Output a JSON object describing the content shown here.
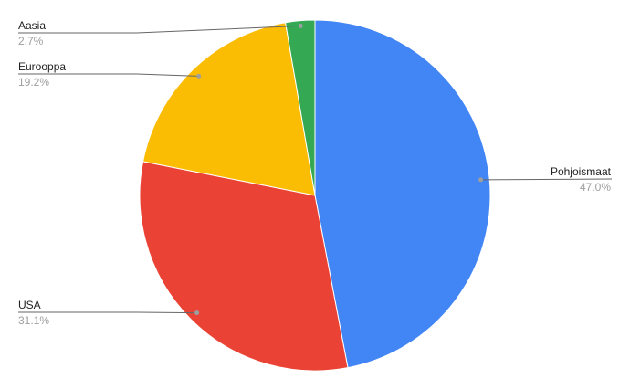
{
  "chart_data": {
    "type": "pie",
    "start_angle": "top",
    "direction": "clockwise",
    "legend": "none",
    "slices": [
      {
        "label": "Pohjoismaat",
        "value": 47.0,
        "value_label": "47.0%",
        "color": "#4285f4"
      },
      {
        "label": "USA",
        "value": 31.1,
        "value_label": "31.1%",
        "color": "#ea4335"
      },
      {
        "label": "Eurooppa",
        "value": 19.2,
        "value_label": "19.2%",
        "color": "#fbbc04"
      },
      {
        "label": "Aasia",
        "value": 2.7,
        "value_label": "2.7%",
        "color": "#34a853"
      }
    ]
  }
}
